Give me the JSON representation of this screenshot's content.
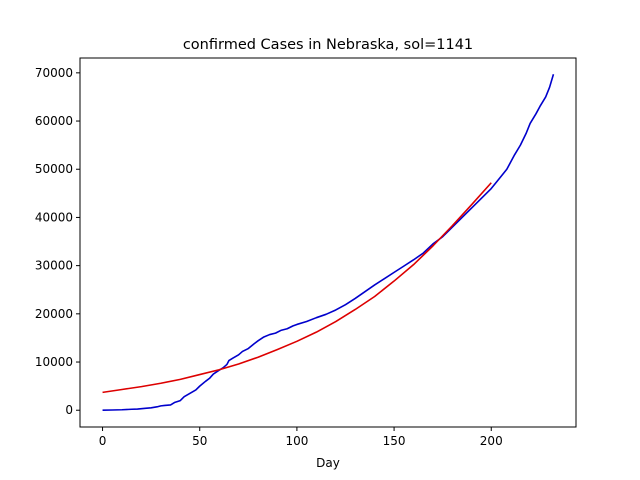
{
  "chart_data": {
    "type": "line",
    "title": "confirmed Cases in Nebraska, sol=1141",
    "xlabel": "Day",
    "ylabel": "",
    "xlim": [
      -11.6,
      243.6
    ],
    "ylim": [
      -3480,
      73080
    ],
    "xticks": [
      0,
      50,
      100,
      150,
      200
    ],
    "yticks": [
      0,
      10000,
      20000,
      30000,
      40000,
      50000,
      60000,
      70000
    ],
    "grid": false,
    "legend": "none",
    "series": [
      {
        "color": "#0000cc",
        "x": [
          0,
          5,
          10,
          15,
          18,
          22,
          25,
          28,
          30,
          32,
          35,
          37,
          40,
          42,
          45,
          48,
          50,
          53,
          55,
          57,
          60,
          62,
          64,
          65,
          67,
          70,
          72,
          75,
          78,
          80,
          83,
          86,
          89,
          92,
          95,
          98,
          100,
          105,
          110,
          115,
          120,
          125,
          130,
          135,
          140,
          145,
          150,
          155,
          160,
          165,
          170,
          175,
          180,
          185,
          190,
          195,
          200,
          205,
          208,
          210,
          212,
          215,
          218,
          220,
          223,
          225,
          228,
          230,
          232
        ],
        "y": [
          0,
          50,
          100,
          200,
          250,
          400,
          500,
          700,
          900,
          1000,
          1100,
          1600,
          2000,
          2800,
          3500,
          4200,
          5000,
          6000,
          6600,
          7500,
          8300,
          8800,
          9500,
          10300,
          10800,
          11500,
          12200,
          12800,
          13800,
          14400,
          15200,
          15700,
          16000,
          16600,
          16900,
          17500,
          17800,
          18400,
          19200,
          19900,
          20800,
          21900,
          23200,
          24600,
          26000,
          27300,
          28600,
          29900,
          31200,
          32600,
          34500,
          36000,
          38000,
          40000,
          42000,
          44000,
          46000,
          48500,
          50000,
          51500,
          53000,
          55000,
          57500,
          59500,
          61500,
          63000,
          65000,
          67000,
          69700
        ]
      },
      {
        "color": "#dd0000",
        "x": [
          0,
          10,
          20,
          30,
          40,
          50,
          60,
          70,
          80,
          90,
          100,
          110,
          120,
          130,
          140,
          150,
          160,
          170,
          180,
          190,
          200
        ],
        "y": [
          3700,
          4300,
          4900,
          5600,
          6400,
          7400,
          8400,
          9600,
          11000,
          12600,
          14300,
          16200,
          18400,
          20900,
          23600,
          26800,
          30200,
          34100,
          38300,
          42700,
          47200
        ]
      }
    ]
  }
}
